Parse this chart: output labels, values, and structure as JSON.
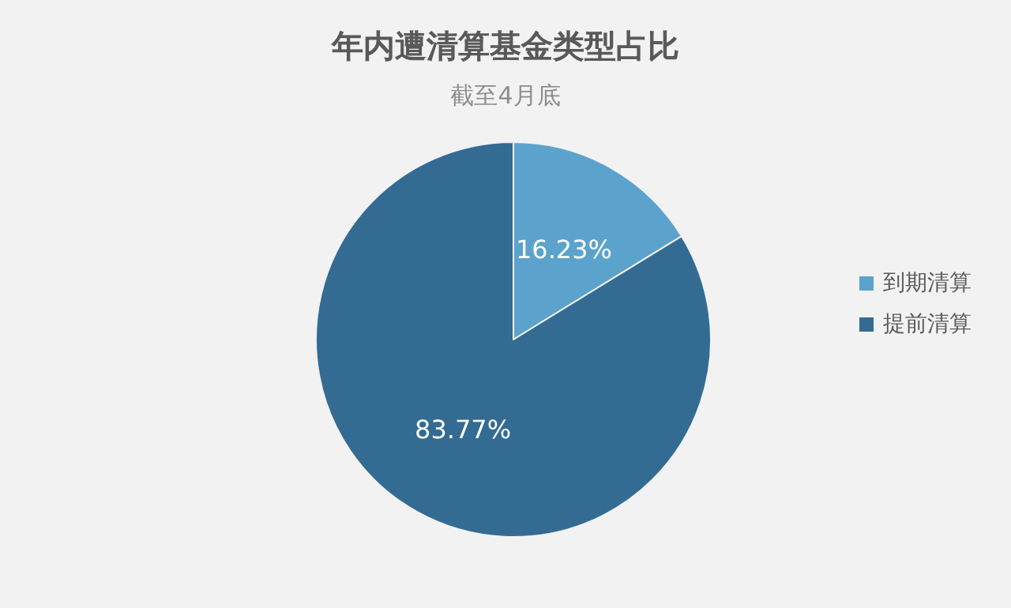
{
  "chart_data": {
    "type": "pie",
    "title": "年内遭清算基金类型占比",
    "subtitle": "截至4月底",
    "categories": [
      "到期清算",
      "提前清算"
    ],
    "values": [
      16.23,
      83.77
    ],
    "value_labels": [
      "16.23%",
      "83.77%"
    ],
    "colors": [
      "#5ba3cc",
      "#336b93"
    ],
    "legend": "right"
  }
}
